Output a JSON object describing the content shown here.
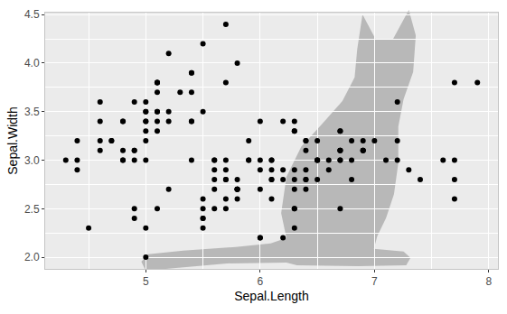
{
  "chart_data": {
    "type": "scatter",
    "x_label": "Sepal.Length",
    "y_label": "Sepal.Width",
    "color": "#000000",
    "marker": "circle",
    "grid": true,
    "xlim": [
      4.12,
      8.08
    ],
    "ylim": [
      1.88,
      4.52
    ],
    "xticks": [
      5,
      6,
      7,
      8
    ],
    "yticks": [
      {
        "value": 2,
        "label": "2.0"
      },
      2.5,
      {
        "value": 3,
        "label": "3.0"
      },
      3.5,
      {
        "value": 4,
        "label": "4.0"
      },
      4.5
    ],
    "x": [
      5.1,
      4.9,
      4.7,
      4.6,
      5.0,
      5.4,
      4.6,
      5.0,
      4.4,
      4.9,
      5.4,
      4.8,
      4.8,
      4.3,
      5.8,
      5.7,
      5.4,
      5.1,
      5.7,
      5.1,
      5.4,
      5.1,
      4.6,
      5.1,
      4.8,
      5.0,
      5.0,
      5.2,
      5.2,
      4.7,
      4.8,
      5.4,
      5.2,
      5.5,
      4.9,
      5.0,
      5.5,
      4.9,
      4.4,
      5.1,
      5.0,
      4.5,
      4.4,
      5.0,
      5.1,
      4.8,
      5.1,
      4.6,
      5.3,
      5.0,
      7.0,
      6.4,
      6.9,
      5.5,
      6.5,
      5.7,
      6.3,
      4.9,
      6.6,
      5.2,
      5.0,
      5.9,
      6.0,
      6.1,
      5.6,
      6.7,
      5.6,
      5.8,
      6.2,
      5.6,
      5.9,
      6.1,
      6.3,
      6.1,
      6.4,
      6.6,
      6.8,
      6.7,
      6.0,
      5.7,
      5.5,
      5.5,
      5.8,
      6.0,
      5.4,
      6.0,
      6.7,
      6.3,
      5.6,
      5.5,
      5.5,
      6.1,
      5.8,
      5.0,
      5.6,
      5.7,
      5.7,
      6.2,
      5.1,
      5.7,
      6.3,
      5.8,
      7.1,
      6.3,
      6.5,
      7.6,
      4.9,
      7.3,
      6.7,
      7.2,
      6.5,
      6.4,
      6.8,
      5.7,
      5.8,
      6.4,
      6.5,
      7.7,
      7.7,
      6.0,
      6.9,
      5.6,
      7.7,
      6.3,
      6.7,
      7.2,
      6.2,
      6.1,
      6.4,
      7.2,
      7.4,
      7.9,
      6.4,
      6.3,
      6.1,
      7.7,
      6.3,
      6.4,
      6.0,
      6.9,
      6.7,
      6.9,
      5.8,
      6.8,
      6.7,
      6.7,
      6.3,
      6.5,
      6.2,
      5.9
    ],
    "values": [
      3.5,
      3.0,
      3.2,
      3.1,
      3.6,
      3.9,
      3.4,
      3.4,
      2.9,
      3.1,
      3.7,
      3.4,
      3.0,
      3.0,
      4.0,
      4.4,
      3.9,
      3.5,
      3.8,
      3.8,
      3.4,
      3.7,
      3.6,
      3.3,
      3.4,
      3.0,
      3.4,
      3.5,
      3.4,
      3.2,
      3.1,
      3.4,
      4.1,
      4.2,
      3.1,
      3.2,
      3.5,
      3.6,
      3.0,
      3.4,
      3.5,
      2.3,
      3.2,
      3.5,
      3.8,
      3.0,
      3.8,
      3.2,
      3.7,
      3.3,
      3.2,
      3.2,
      3.1,
      2.3,
      2.8,
      2.8,
      3.3,
      2.4,
      2.9,
      2.7,
      2.0,
      3.0,
      2.2,
      2.9,
      2.9,
      3.1,
      3.0,
      2.7,
      2.2,
      2.5,
      3.2,
      2.8,
      2.5,
      2.8,
      2.9,
      3.0,
      2.8,
      3.0,
      2.9,
      2.6,
      2.4,
      2.4,
      2.7,
      2.7,
      3.0,
      3.4,
      3.1,
      2.3,
      3.0,
      2.5,
      2.6,
      3.0,
      2.6,
      2.3,
      2.7,
      3.0,
      2.9,
      2.9,
      2.5,
      2.8,
      3.3,
      2.7,
      3.0,
      2.9,
      3.0,
      3.0,
      2.5,
      2.9,
      2.5,
      3.6,
      3.2,
      2.7,
      3.0,
      2.5,
      2.8,
      3.2,
      3.0,
      3.8,
      2.6,
      2.2,
      3.2,
      2.8,
      2.8,
      2.7,
      3.3,
      3.2,
      2.8,
      3.0,
      2.8,
      3.0,
      2.8,
      3.8,
      2.8,
      2.8,
      2.6,
      3.0,
      3.4,
      3.1,
      3.0,
      3.1,
      3.1,
      3.1,
      2.7,
      3.2,
      3.3,
      3.0,
      2.5,
      3.0,
      3.4,
      3.0
    ]
  }
}
